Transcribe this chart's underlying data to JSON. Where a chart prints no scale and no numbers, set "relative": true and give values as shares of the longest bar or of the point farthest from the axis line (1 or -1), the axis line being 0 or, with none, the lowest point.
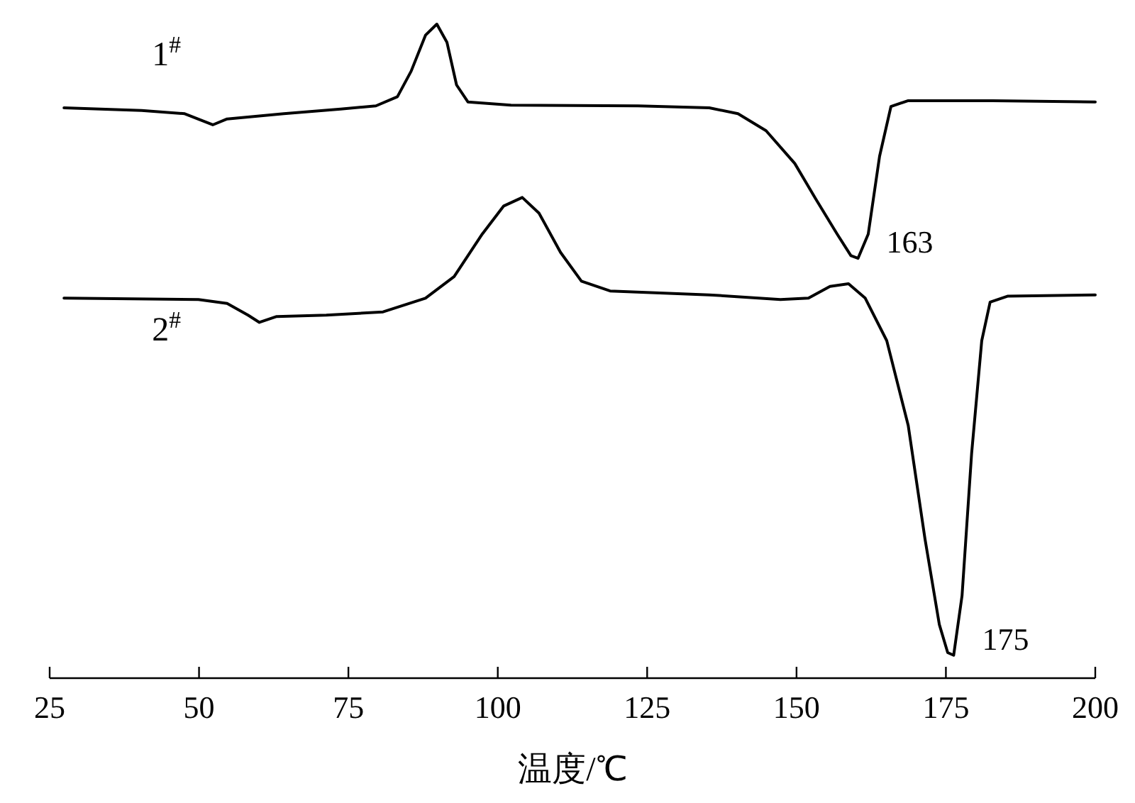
{
  "chart_data": {
    "type": "line",
    "relative": true,
    "xlabel": "温度/℃",
    "xlim": [
      25,
      200
    ],
    "xticks": [
      25,
      50,
      75,
      100,
      125,
      150,
      175,
      200
    ],
    "series": [
      {
        "name": "1$^{#}$",
        "color": "#000000",
        "x": [
          27.4,
          40.4,
          47.6,
          52.3,
          54.7,
          64.2,
          73.7,
          79.6,
          83.2,
          85.5,
          87.9,
          89.8,
          91.5,
          93.1,
          95.0,
          102.2,
          123.5,
          135.4,
          140.2,
          144.9,
          149.7,
          153.2,
          156.8,
          159.1,
          160.3,
          162.0,
          163.9,
          165.8,
          168.7,
          182.9,
          200
        ],
        "values": [
          0.872,
          0.868,
          0.863,
          0.846,
          0.855,
          0.863,
          0.87,
          0.875,
          0.889,
          0.928,
          0.983,
          1,
          0.972,
          0.907,
          0.881,
          0.876,
          0.875,
          0.872,
          0.863,
          0.837,
          0.787,
          0.733,
          0.679,
          0.646,
          0.642,
          0.679,
          0.798,
          0.874,
          0.883,
          0.883,
          0.881
        ]
      },
      {
        "name": "2$^{#}$",
        "color": "#000000",
        "x": [
          27.4,
          49.9,
          54.7,
          58.2,
          60.1,
          63.0,
          71.3,
          80.8,
          87.9,
          92.7,
          97.4,
          101.0,
          104.1,
          106.9,
          110.5,
          114.0,
          118.8,
          135.4,
          147.3,
          152.0,
          155.6,
          158.7,
          161.5,
          165.1,
          168.7,
          171.5,
          173.9,
          175.3,
          176.3,
          177.7,
          179.3,
          181.0,
          182.4,
          185.3,
          200
        ],
        "values": [
          0.581,
          0.579,
          0.573,
          0.555,
          0.544,
          0.553,
          0.555,
          0.56,
          0.581,
          0.614,
          0.679,
          0.722,
          0.735,
          0.711,
          0.651,
          0.607,
          0.592,
          0.586,
          0.579,
          0.581,
          0.599,
          0.603,
          0.581,
          0.516,
          0.386,
          0.213,
          0.082,
          0.039,
          0.035,
          0.126,
          0.343,
          0.516,
          0.575,
          0.584,
          0.586
        ]
      }
    ],
    "annotations": [
      {
        "text": "163",
        "x": 160.3,
        "y": 0.642
      },
      {
        "text": "175",
        "x": 176.3,
        "y": 0.035
      }
    ]
  }
}
